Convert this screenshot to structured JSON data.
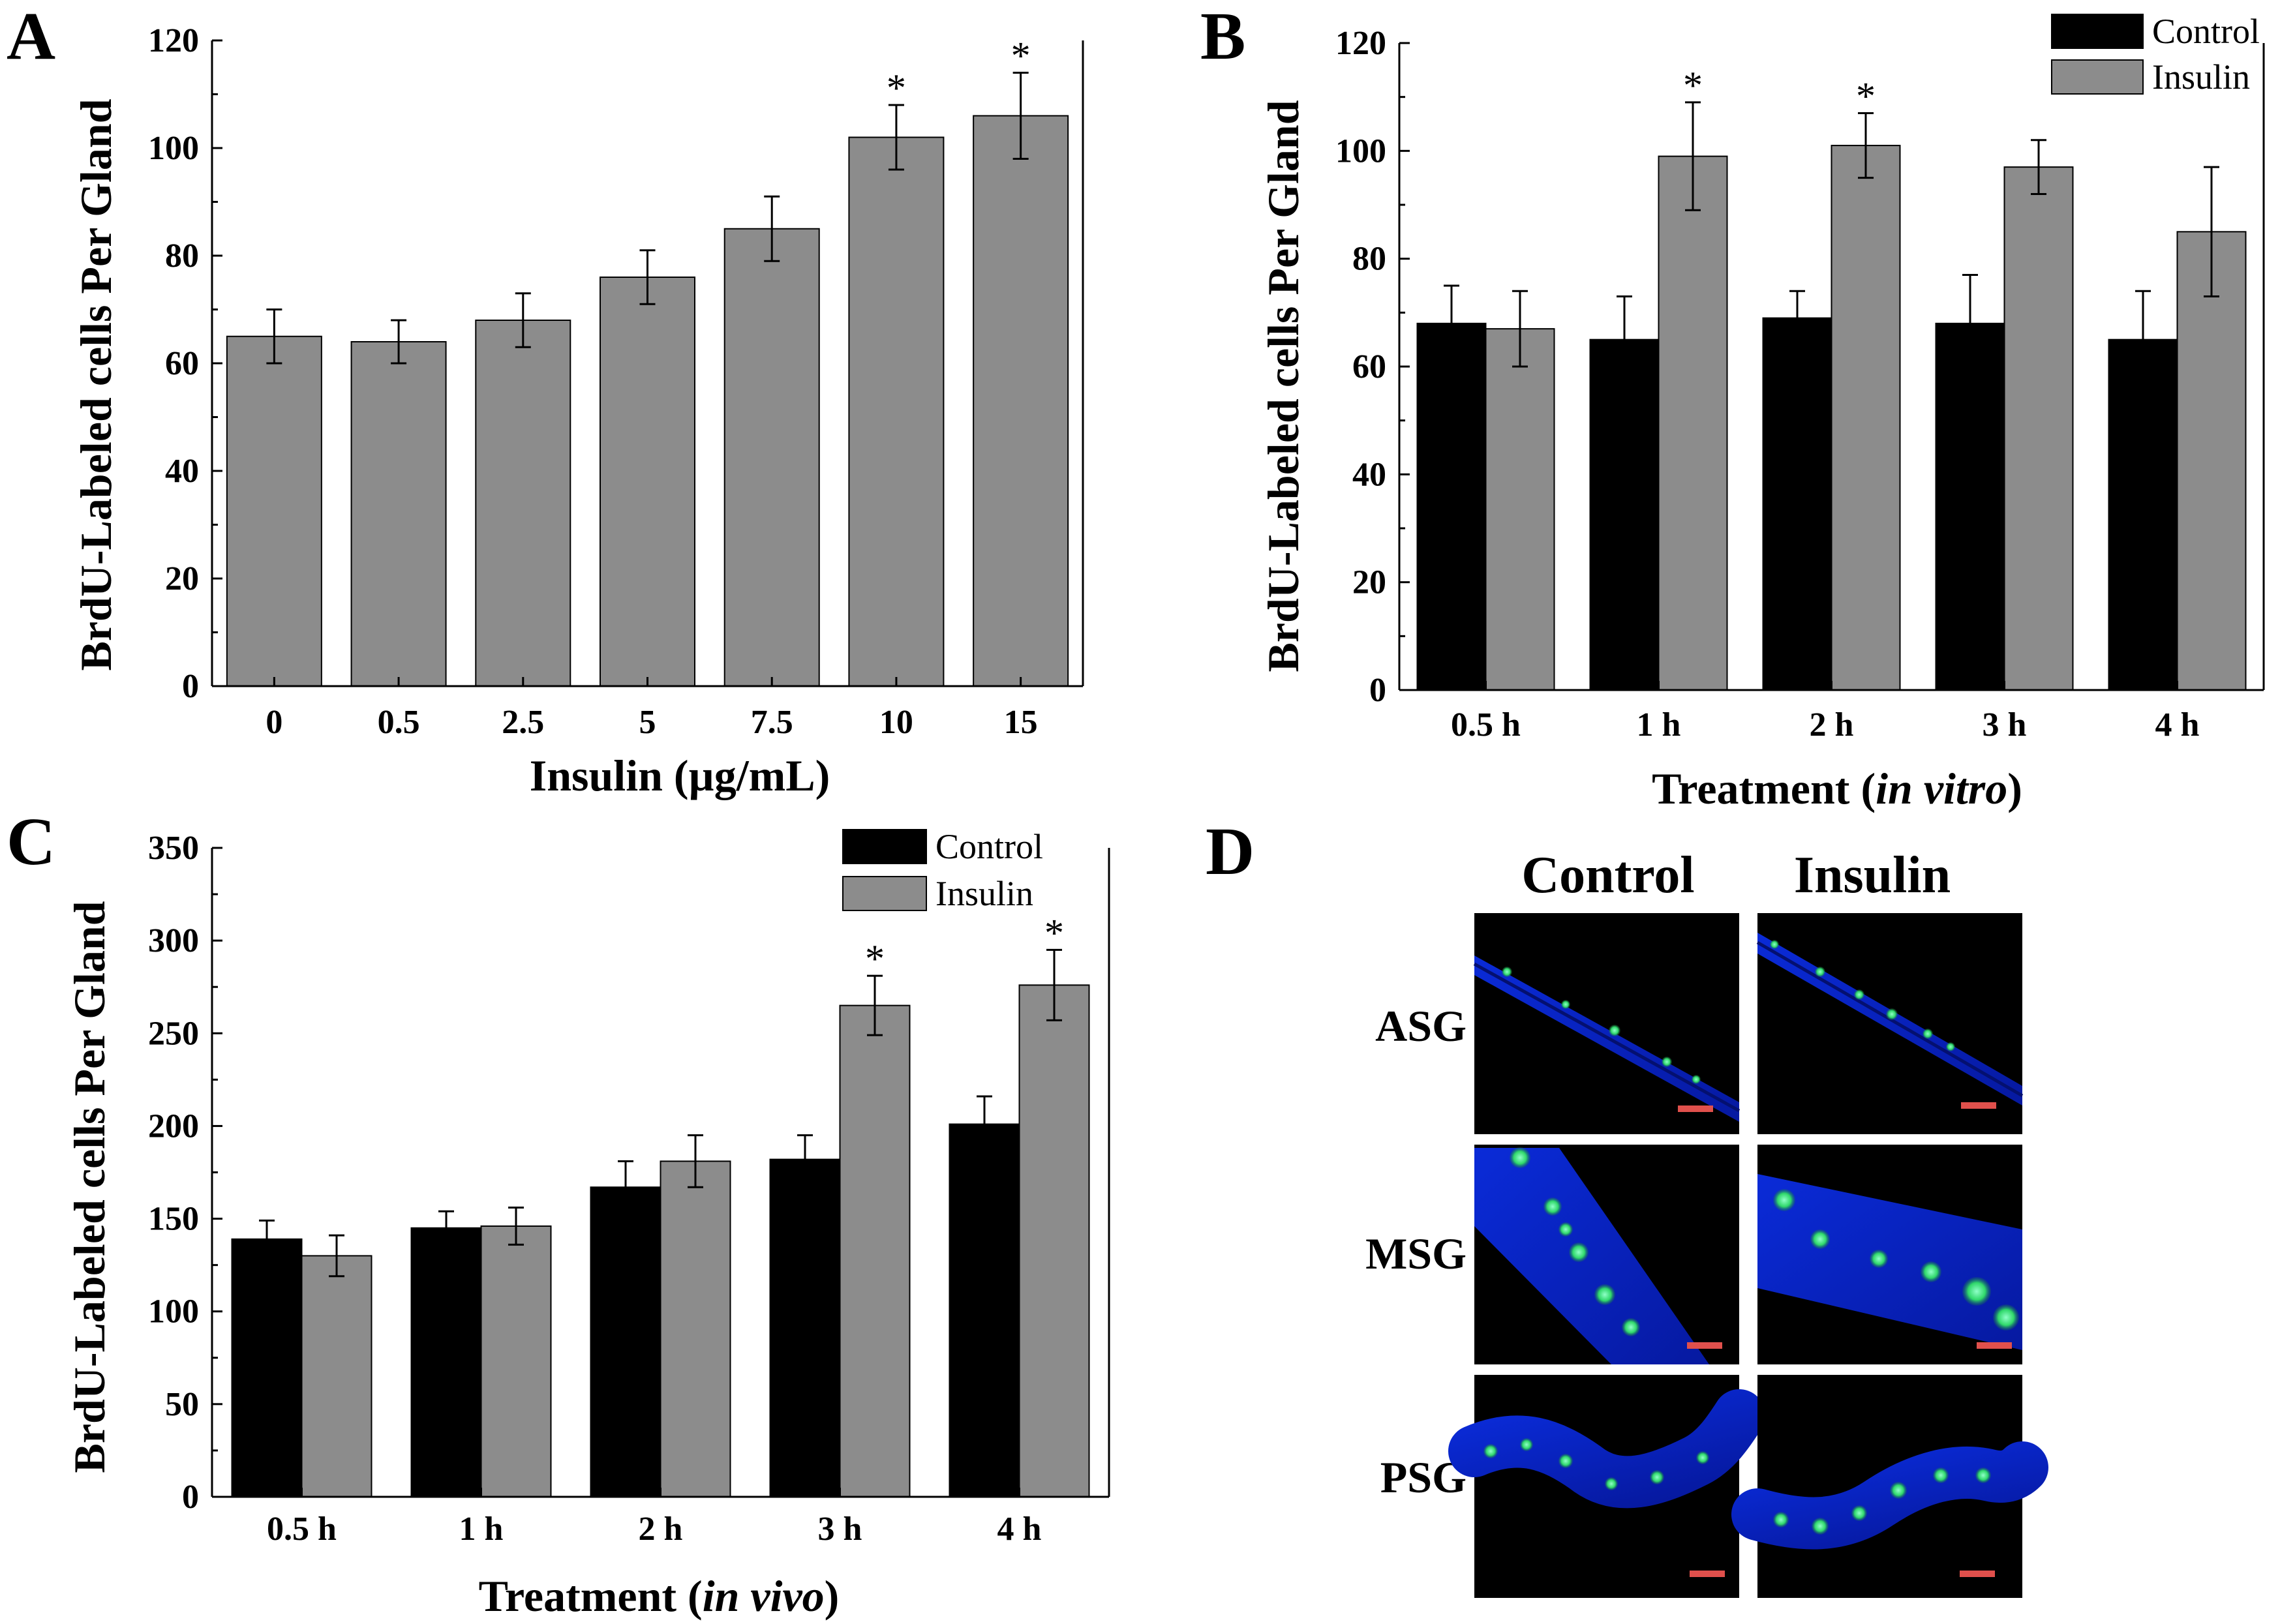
{
  "colors": {
    "control": "#000000",
    "insulin": "#8c8c8c",
    "single": "#8c8c8c",
    "scale_bar": "#e0504c"
  },
  "chart_data": [
    {
      "panel": "A",
      "type": "bar",
      "title": "",
      "xlabel": "Insulin (µg/mL)",
      "ylabel": "BrdU-Labeled cells Per Gland",
      "ylim": [
        0,
        120
      ],
      "yticks": [
        0,
        20,
        40,
        60,
        80,
        100,
        120
      ],
      "categories": [
        "0",
        "0.5",
        "2.5",
        "5",
        "7.5",
        "10",
        "15"
      ],
      "series": [
        {
          "name": "Insulin",
          "values": [
            65,
            64,
            68,
            76,
            85,
            102,
            106
          ],
          "errors": [
            5,
            4,
            5,
            5,
            6,
            6,
            8
          ],
          "annotations": [
            "",
            "",
            "",
            "",
            "",
            "*",
            "*"
          ]
        }
      ]
    },
    {
      "panel": "B",
      "type": "bar",
      "title": "",
      "xlabel": "Treatment (",
      "xlabel_italic": "in vitro",
      "xlabel_end": ")",
      "ylabel": "BrdU-Labeled cells Per Gland",
      "ylim": [
        0,
        120
      ],
      "yticks": [
        0,
        20,
        40,
        60,
        80,
        100,
        120
      ],
      "legend": "top-right",
      "categories": [
        "0.5 h",
        "1 h",
        "2 h",
        "3 h",
        "4 h"
      ],
      "series": [
        {
          "name": "Control",
          "values": [
            68,
            65,
            69,
            68,
            65
          ],
          "errors": [
            7,
            8,
            5,
            9,
            9
          ],
          "annotations": [
            "",
            "",
            "",
            "",
            ""
          ]
        },
        {
          "name": "Insulin",
          "values": [
            67,
            99,
            101,
            97,
            85
          ],
          "errors": [
            7,
            10,
            6,
            5,
            12
          ],
          "annotations": [
            "",
            "*",
            "*",
            "",
            ""
          ]
        }
      ]
    },
    {
      "panel": "C",
      "type": "bar",
      "title": "",
      "xlabel": "Treatment (",
      "xlabel_italic": "in vivo",
      "xlabel_end": ")",
      "ylabel": "BrdU-Labeled cells Per Gland",
      "ylim": [
        0,
        350
      ],
      "yticks": [
        0,
        50,
        100,
        150,
        200,
        250,
        300,
        350
      ],
      "legend": "top-right",
      "categories": [
        "0.5 h",
        "1 h",
        "2 h",
        "3 h",
        "4 h"
      ],
      "series": [
        {
          "name": "Control",
          "values": [
            139,
            145,
            167,
            182,
            201
          ],
          "errors": [
            10,
            9,
            14,
            13,
            15
          ],
          "annotations": [
            "",
            "",
            "",
            "",
            ""
          ]
        },
        {
          "name": "Insulin",
          "values": [
            130,
            146,
            181,
            265,
            276
          ],
          "errors": [
            11,
            10,
            14,
            16,
            19
          ],
          "annotations": [
            "",
            "",
            "",
            "*",
            "*"
          ]
        }
      ]
    }
  ],
  "micrographs": {
    "panel": "D",
    "columns": [
      "Control",
      "Insulin"
    ],
    "rows": [
      "ASG",
      "MSG",
      "PSG"
    ]
  }
}
